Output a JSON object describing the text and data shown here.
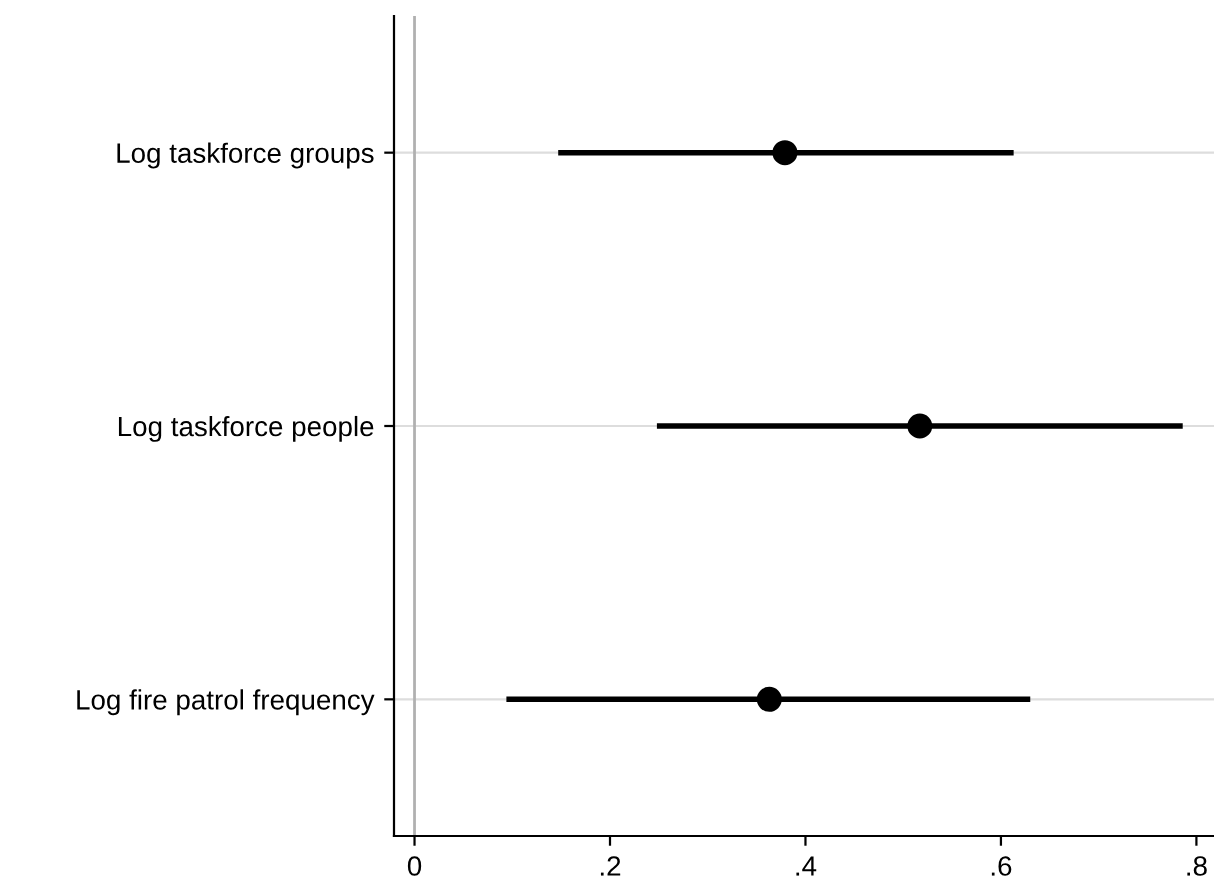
{
  "chart_data": {
    "type": "scatter",
    "orientation": "horizontal",
    "categories": [
      "Log taskforce groups",
      "Log taskforce people",
      "Log fire patrol frequency"
    ],
    "values": [
      0.379,
      0.517,
      0.363
    ],
    "errors": [
      [
        0.147,
        0.613
      ],
      [
        0.248,
        0.786
      ],
      [
        0.094,
        0.63
      ]
    ],
    "color": "#000000",
    "marker": "circle",
    "xlim": [
      -0.021,
      0.818
    ],
    "xticks": [
      {
        "value": 0,
        "label": "0"
      },
      {
        "value": 0.2,
        "label": ".2"
      },
      {
        "value": 0.4,
        "label": ".4"
      },
      {
        "value": 0.6,
        "label": ".6"
      },
      {
        "value": 0.8,
        "label": ".8"
      }
    ],
    "grid": "y",
    "legend": false,
    "ref_lines": [
      {
        "axis": "x",
        "value": 0,
        "color": "#b0b0b0"
      }
    ]
  }
}
